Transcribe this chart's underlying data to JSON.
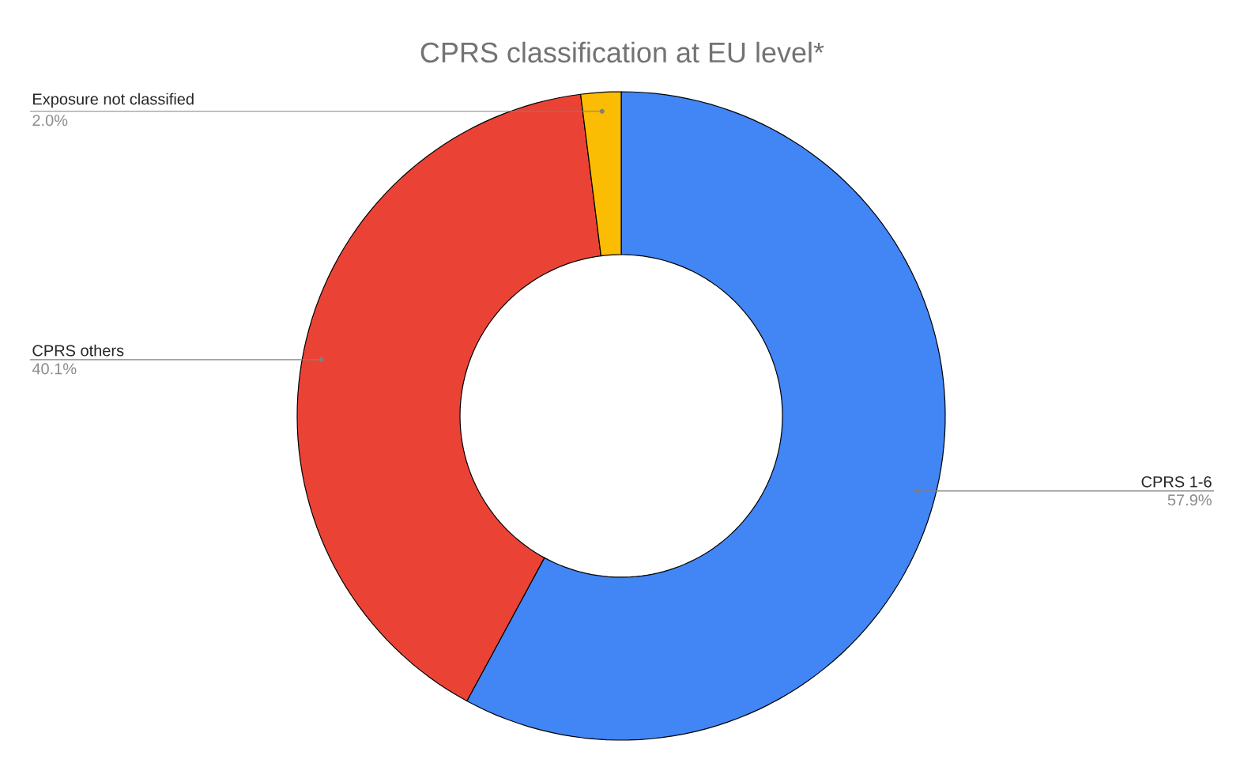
{
  "chart_data": {
    "type": "donut",
    "title": "CPRS classification at EU level*",
    "categories": [
      "CPRS 1-6",
      "CPRS others",
      "Exposure not classified"
    ],
    "values": [
      57.9,
      40.1,
      2.0
    ],
    "value_labels": [
      "57.9%",
      "40.1%",
      "2.0%"
    ],
    "colors": [
      "#4285f4",
      "#ea4335",
      "#fbbc04"
    ]
  }
}
